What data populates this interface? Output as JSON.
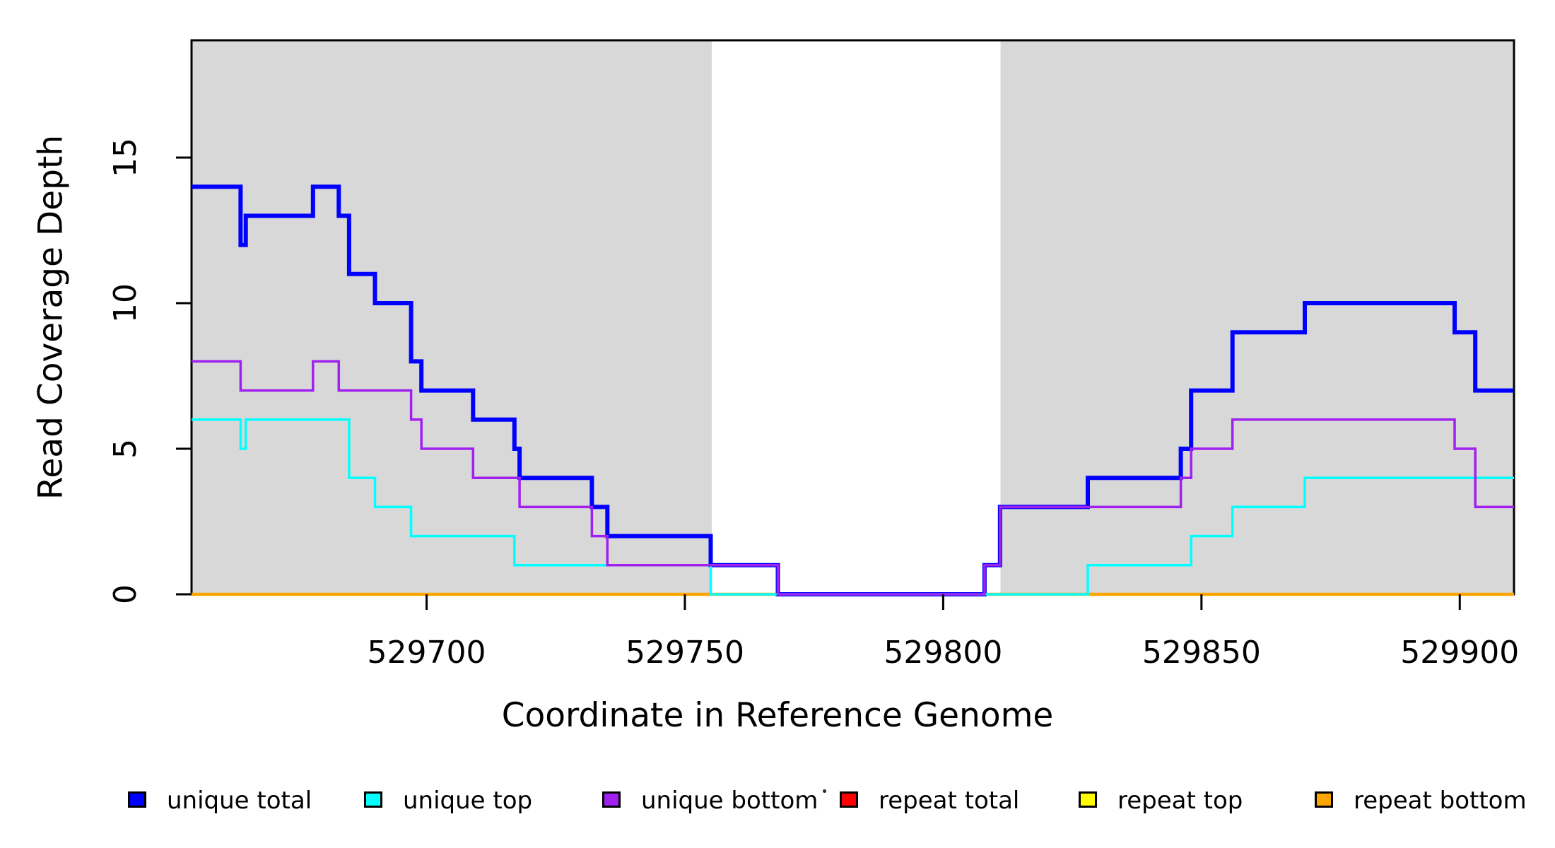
{
  "chart_data": {
    "type": "line",
    "subtype": "step-coverage-plot",
    "title": "",
    "xlabel": "Coordinate in Reference Genome",
    "ylabel": "Read Coverage Depth",
    "xlim": [
      529654.5,
      529910.5
    ],
    "ylim": [
      0,
      19.03
    ],
    "grid": false,
    "x_ticks": [
      529700,
      529750,
      529800,
      529850,
      529900
    ],
    "x_tick_labels": [
      "529700",
      "529750",
      "529800",
      "529850",
      "529900"
    ],
    "y_ticks": [
      0,
      5,
      10,
      15
    ],
    "y_tick_labels": [
      "0",
      "5",
      "10",
      "15"
    ],
    "background_color": "#ffffff",
    "shading_color": "#d8d8d8",
    "frame_color": "#000000",
    "shaded_regions": [
      {
        "name": "left-unique-region",
        "x0": 529654.5,
        "x1": 529755.2
      },
      {
        "name": "right-unique-region",
        "x0": 529811.1,
        "x1": 529910.5
      }
    ],
    "series": [
      {
        "name": "repeat total",
        "color": "#ff0000",
        "line_width": 3.5,
        "legend_order": 3,
        "steps": [
          [
            529654.5,
            0
          ]
        ]
      },
      {
        "name": "repeat top",
        "color": "#ffff00",
        "line_width": 3.5,
        "legend_order": 4,
        "steps": [
          [
            529654.5,
            0
          ]
        ]
      },
      {
        "name": "repeat bottom",
        "color": "#ffa500",
        "line_width": 4.5,
        "legend_order": 5,
        "steps": [
          [
            529654.5,
            0
          ]
        ]
      },
      {
        "name": "unique total",
        "color": "#0000ff",
        "line_width": 6,
        "legend_order": 0,
        "steps": [
          [
            529654.5,
            14
          ],
          [
            529664,
            12
          ],
          [
            529665,
            13
          ],
          [
            529678,
            14
          ],
          [
            529683,
            13
          ],
          [
            529685,
            11
          ],
          [
            529690,
            10
          ],
          [
            529697,
            8
          ],
          [
            529699,
            7
          ],
          [
            529709,
            6
          ],
          [
            529717,
            5
          ],
          [
            529718,
            4
          ],
          [
            529732,
            3
          ],
          [
            529735,
            2
          ],
          [
            529755,
            1
          ],
          [
            529768,
            0
          ],
          [
            529808,
            1
          ],
          [
            529811,
            3
          ],
          [
            529828,
            4
          ],
          [
            529846,
            5
          ],
          [
            529848,
            7
          ],
          [
            529856,
            9
          ],
          [
            529870,
            10
          ],
          [
            529899,
            9
          ],
          [
            529903,
            7
          ]
        ]
      },
      {
        "name": "unique top",
        "color": "#00ffff",
        "line_width": 3.5,
        "legend_order": 1,
        "steps": [
          [
            529654.5,
            6
          ],
          [
            529664,
            5
          ],
          [
            529665,
            6
          ],
          [
            529685,
            4
          ],
          [
            529690,
            3
          ],
          [
            529697,
            2
          ],
          [
            529717,
            1
          ],
          [
            529755,
            0
          ],
          [
            529828,
            1
          ],
          [
            529848,
            2
          ],
          [
            529856,
            3
          ],
          [
            529870,
            4
          ]
        ]
      },
      {
        "name": "unique bottom",
        "color": "#a020f0",
        "line_width": 3.5,
        "legend_order": 2,
        "steps": [
          [
            529654.5,
            8
          ],
          [
            529664,
            7
          ],
          [
            529678,
            8
          ],
          [
            529683,
            7
          ],
          [
            529697,
            6
          ],
          [
            529699,
            5
          ],
          [
            529709,
            4
          ],
          [
            529718,
            3
          ],
          [
            529732,
            2
          ],
          [
            529735,
            1
          ],
          [
            529768,
            0
          ],
          [
            529808,
            1
          ],
          [
            529811,
            3
          ],
          [
            529846,
            4
          ],
          [
            529848,
            5
          ],
          [
            529856,
            6
          ],
          [
            529899,
            5
          ],
          [
            529903,
            3
          ]
        ]
      }
    ],
    "legend": {
      "position": "bottom",
      "entries": [
        {
          "label": "unique total",
          "color": "#0000ff"
        },
        {
          "label": "unique top",
          "color": "#00ffff"
        },
        {
          "label": "unique bottom",
          "color": "#a020f0"
        },
        {
          "label": "repeat total",
          "color": "#ff0000"
        },
        {
          "label": "repeat top",
          "color": "#ffff00"
        },
        {
          "label": "repeat bottom",
          "color": "#ffa500"
        }
      ]
    }
  }
}
